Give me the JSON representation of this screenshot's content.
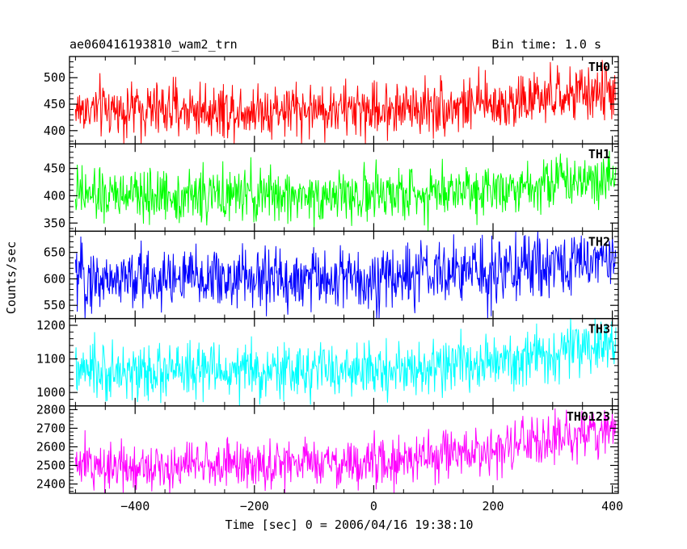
{
  "header": {
    "file_name": "ae060416193810_wam2_trn",
    "bin_time": "Bin time: 1.0 s"
  },
  "chart_data": {
    "type": "line",
    "xlabel": "Time [sec] 0 = 2006/04/16 19:38:10",
    "ylabel": "Counts/sec",
    "xlim": [
      -510,
      410
    ],
    "x_ticks": [
      -400,
      -200,
      0,
      200,
      400
    ],
    "x_tick_labels": [
      "−400",
      "−200",
      "0",
      "200",
      "400"
    ],
    "data_x_range": [
      -500,
      406
    ],
    "bin_time_s": 1.0,
    "panels": [
      {
        "name": "TH0",
        "color": "#ff0000",
        "ylim": [
          375,
          540
        ],
        "yticks": [
          400,
          450,
          500
        ],
        "trend": [
          [
            -500,
            440
          ],
          [
            0,
            440
          ],
          [
            200,
            450
          ],
          [
            406,
            475
          ]
        ],
        "scatter": 26
      },
      {
        "name": "TH1",
        "color": "#00ff00",
        "ylim": [
          335,
          495
        ],
        "yticks": [
          350,
          400,
          450
        ],
        "trend": [
          [
            -500,
            400
          ],
          [
            0,
            400
          ],
          [
            200,
            415
          ],
          [
            406,
            438
          ]
        ],
        "scatter": 24
      },
      {
        "name": "TH2",
        "color": "#0000ff",
        "ylim": [
          525,
          690
        ],
        "yticks": [
          550,
          600,
          650
        ],
        "trend": [
          [
            -500,
            600
          ],
          [
            0,
            600
          ],
          [
            200,
            615
          ],
          [
            406,
            640
          ]
        ],
        "scatter": 30
      },
      {
        "name": "TH3",
        "color": "#00ffff",
        "ylim": [
          960,
          1220
        ],
        "yticks": [
          1000,
          1100,
          1200
        ],
        "trend": [
          [
            -500,
            1060
          ],
          [
            0,
            1065
          ],
          [
            200,
            1085
          ],
          [
            406,
            1145
          ]
        ],
        "scatter": 40
      },
      {
        "name": "TH0123",
        "color": "#ff00ff",
        "ylim": [
          2350,
          2820
        ],
        "yticks": [
          2400,
          2500,
          2600,
          2700,
          2800
        ],
        "trend": [
          [
            -500,
            2500
          ],
          [
            0,
            2510
          ],
          [
            200,
            2580
          ],
          [
            406,
            2700
          ]
        ],
        "scatter": 65
      }
    ]
  }
}
